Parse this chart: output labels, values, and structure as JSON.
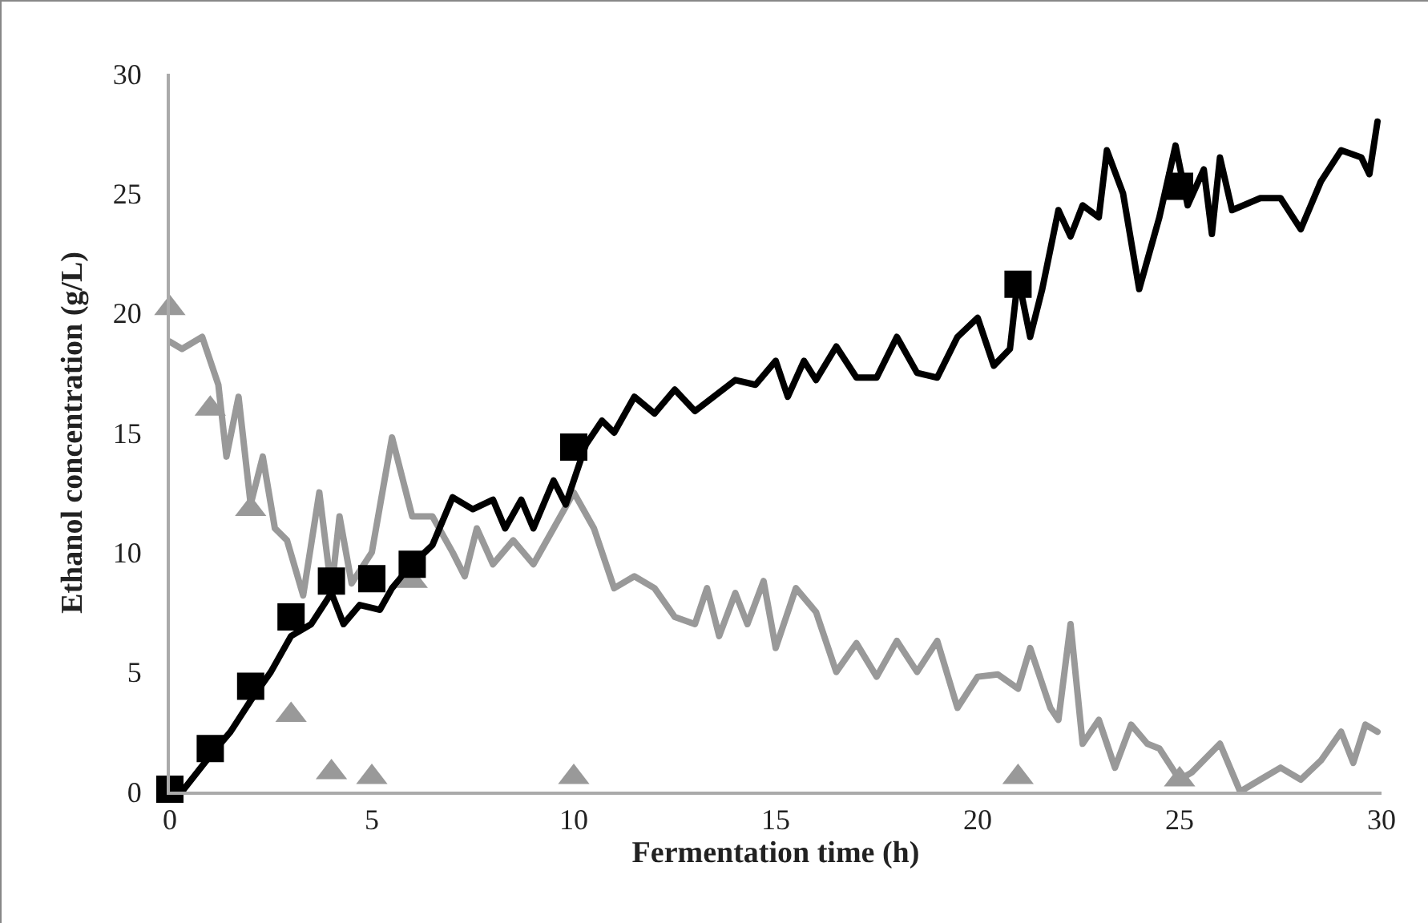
{
  "chart_data": {
    "type": "line",
    "xlabel": "Fermentation time (h)",
    "ylabel": "Ethanol concentration (g/L)",
    "xlim": [
      0,
      30
    ],
    "xticks": [
      0,
      5,
      10,
      15,
      20,
      25,
      30
    ],
    "ylim": [
      0,
      30
    ],
    "yticks": [
      0,
      5,
      10,
      15,
      20,
      25,
      30
    ],
    "grid": false,
    "series": [
      {
        "color": "#999999",
        "marker": "none",
        "line_style": "solid",
        "x": [
          0,
          0.3,
          0.8,
          1.2,
          1.4,
          1.7,
          2,
          2.3,
          2.6,
          2.9,
          3.3,
          3.7,
          4,
          4.2,
          4.5,
          5,
          5.5,
          6,
          6.5,
          7,
          7.3,
          7.6,
          8,
          8.5,
          9,
          9.5,
          10,
          10.5,
          11,
          11.5,
          12,
          12.5,
          13,
          13.3,
          13.6,
          14,
          14.3,
          14.7,
          15,
          15.5,
          16,
          16.5,
          17,
          17.5,
          18,
          18.5,
          19,
          19.5,
          20,
          20.5,
          21,
          21.3,
          21.8,
          22,
          22.3,
          22.6,
          23,
          23.4,
          23.8,
          24.2,
          24.5,
          25,
          25.3,
          26,
          26.5,
          27,
          27.5,
          28,
          28.5,
          29,
          29.3,
          29.6,
          29.9
        ],
        "values": [
          18.8,
          18.5,
          19,
          17,
          14,
          16.5,
          12,
          14,
          11,
          10.5,
          8.2,
          12.5,
          8.4,
          11.5,
          8.7,
          10,
          14.8,
          11.5,
          11.5,
          10,
          9,
          11,
          9.5,
          10.5,
          9.5,
          11,
          12.5,
          11,
          8.5,
          9,
          8.5,
          7.3,
          7,
          8.5,
          6.5,
          8.3,
          7,
          8.8,
          6,
          8.5,
          7.5,
          5,
          6.2,
          4.8,
          6.3,
          5,
          6.3,
          3.5,
          4.8,
          4.9,
          4.3,
          6,
          3.5,
          3,
          7,
          2,
          3,
          1,
          2.8,
          2,
          1.8,
          0.5,
          0.8,
          2,
          0,
          0.5,
          1,
          0.5,
          1.3,
          2.5,
          1.2,
          2.8,
          2.5
        ]
      },
      {
        "color": "#000000",
        "marker": "none",
        "line_style": "solid",
        "x": [
          0.3,
          1,
          1.5,
          2,
          2.5,
          3,
          3.5,
          4,
          4.3,
          4.7,
          5.2,
          5.5,
          6,
          6.5,
          7,
          7.5,
          8,
          8.3,
          8.7,
          9,
          9.5,
          9.8,
          10.3,
          10.7,
          11,
          11.5,
          12,
          12.5,
          13,
          14,
          14.5,
          15,
          15.3,
          15.7,
          16,
          16.5,
          17,
          17.5,
          18,
          18.5,
          19,
          19.5,
          20,
          20.4,
          20.8,
          21,
          21.3,
          21.6,
          22,
          22.3,
          22.6,
          23,
          23.2,
          23.6,
          24,
          24.5,
          24.9,
          25.2,
          25.6,
          25.8,
          26,
          26.3,
          27,
          27.5,
          28,
          28.5,
          29,
          29.5,
          29.7,
          29.9
        ],
        "values": [
          0,
          1.5,
          2.5,
          3.8,
          5,
          6.5,
          7,
          8.3,
          7,
          7.8,
          7.6,
          8.5,
          9.5,
          10.3,
          12.3,
          11.8,
          12.2,
          11,
          12.2,
          11,
          13,
          12,
          14.5,
          15.5,
          15,
          16.5,
          15.8,
          16.8,
          15.9,
          17.2,
          17,
          18,
          16.5,
          18,
          17.2,
          18.6,
          17.3,
          17.3,
          19,
          17.5,
          17.3,
          19,
          19.8,
          17.8,
          18.5,
          21.5,
          19,
          21,
          24.3,
          23.2,
          24.5,
          24,
          26.8,
          25,
          21,
          24,
          27,
          24.5,
          26,
          23.3,
          26.5,
          24.3,
          24.8,
          24.8,
          23.5,
          25.5,
          26.8,
          26.5,
          25.8,
          28
        ]
      },
      {
        "type": "scatter",
        "color": "#999999",
        "marker": "triangle",
        "x": [
          0,
          1,
          2,
          3,
          4,
          5,
          6,
          10,
          21,
          25
        ],
        "values": [
          20.2,
          16,
          11.8,
          3.2,
          0.8,
          0.6,
          8.8,
          0.6,
          0.6,
          0.5
        ]
      },
      {
        "type": "scatter",
        "color": "#000000",
        "marker": "square",
        "x": [
          0,
          1,
          2,
          3,
          4,
          5,
          6,
          10,
          21,
          25
        ],
        "values": [
          0.1,
          1.8,
          4.4,
          7.3,
          8.8,
          8.9,
          9.5,
          14.4,
          21.2,
          25.3
        ]
      }
    ]
  }
}
